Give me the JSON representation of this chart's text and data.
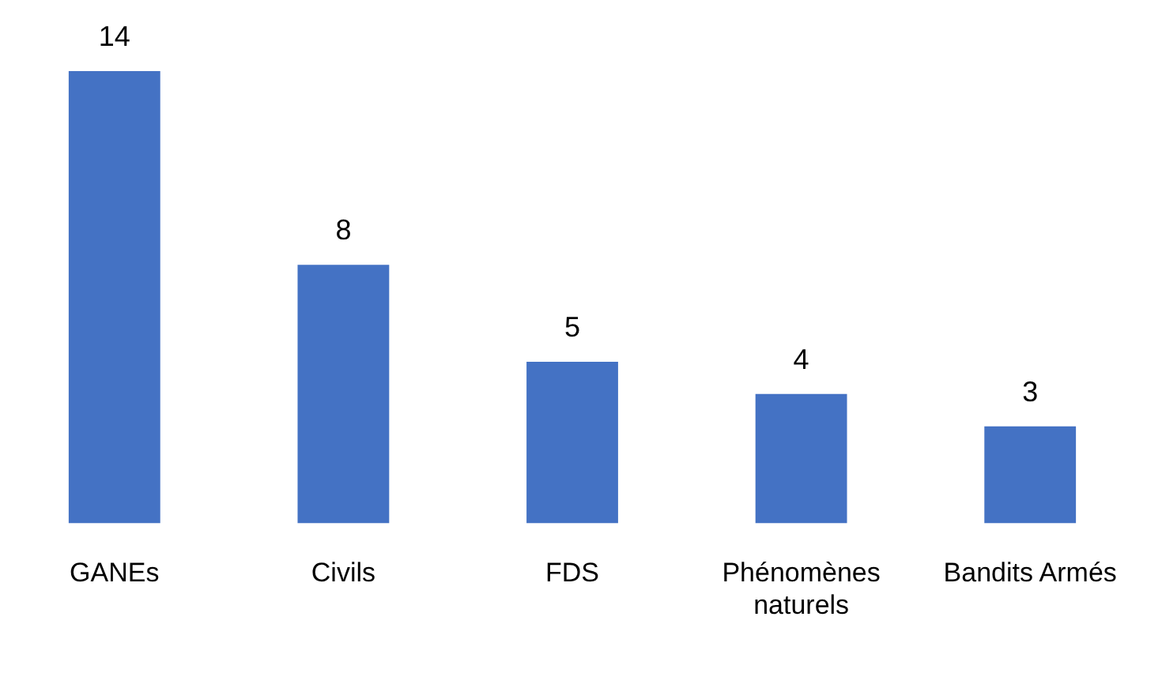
{
  "chart_data": {
    "type": "bar",
    "categories": [
      "GANEs",
      "Civils",
      "FDS",
      "Phénomènes naturels",
      "Bandits Armés"
    ],
    "values": [
      14,
      8,
      5,
      4,
      3
    ],
    "color": "#4472c4",
    "data_labels": true,
    "grid": false,
    "legend": false
  }
}
